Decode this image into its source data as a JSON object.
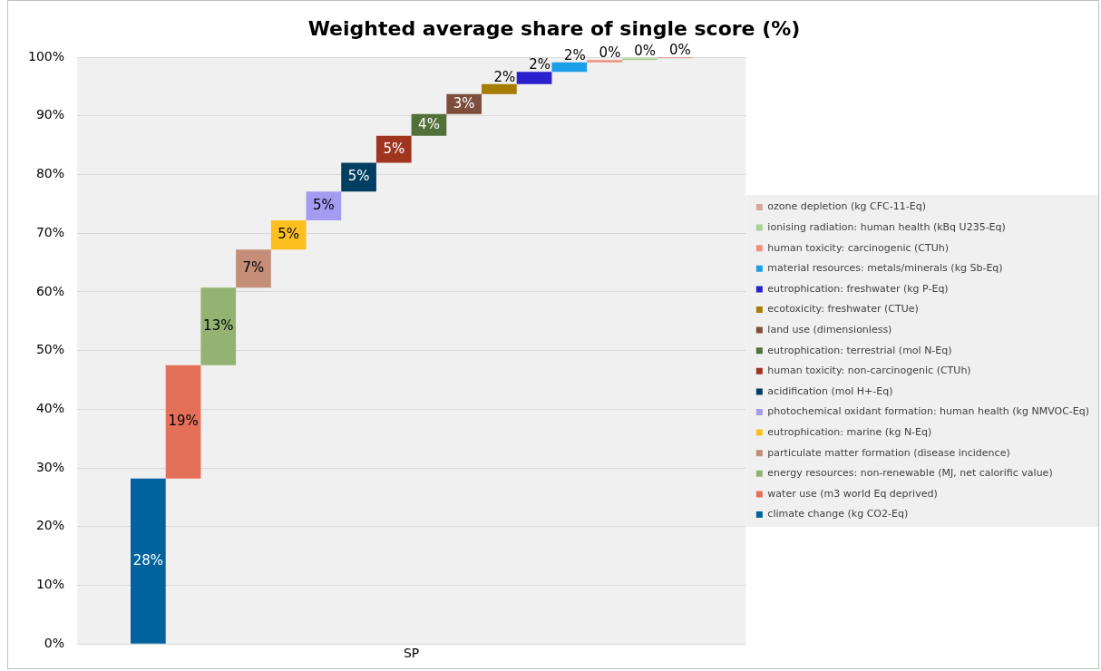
{
  "chart_data": {
    "type": "bar",
    "title": "Weighted average share of single score (%)",
    "categories": [
      "SP"
    ],
    "ylim": [
      0,
      100
    ],
    "yticks": [
      {
        "value": 0,
        "label": "0%"
      },
      {
        "value": 10,
        "label": "10%"
      },
      {
        "value": 20,
        "label": "20%"
      },
      {
        "value": 30,
        "label": "30%"
      },
      {
        "value": 40,
        "label": "40%"
      },
      {
        "value": 50,
        "label": "50%"
      },
      {
        "value": 60,
        "label": "60%"
      },
      {
        "value": 70,
        "label": "70%"
      },
      {
        "value": 80,
        "label": "80%"
      },
      {
        "value": 90,
        "label": "90%"
      },
      {
        "value": 100,
        "label": "100%"
      }
    ],
    "grid": "y",
    "legend": "right",
    "series": [
      {
        "name": "climate change (kg CO2-Eq)",
        "color": "#00639e",
        "base": [
          0
        ],
        "values": [
          28.2
        ],
        "value_labels": [
          "28%"
        ]
      },
      {
        "name": "water use (m3 world Eq deprived)",
        "color": "#e5705a",
        "base": [
          28.2
        ],
        "values": [
          19.3
        ],
        "value_labels": [
          "19%"
        ]
      },
      {
        "name": "energy resources: non-renewable (MJ, net calorific value)",
        "color": "#94b373",
        "base": [
          47.5
        ],
        "values": [
          13.2
        ],
        "value_labels": [
          "13%"
        ]
      },
      {
        "name": "particulate matter formation (disease incidence)",
        "color": "#c48e78",
        "base": [
          60.7
        ],
        "values": [
          6.5
        ],
        "value_labels": [
          "7%"
        ]
      },
      {
        "name": "eutrophication: marine (kg N-Eq)",
        "color": "#fbc020",
        "base": [
          67.2
        ],
        "values": [
          5.0
        ],
        "value_labels": [
          "5%"
        ]
      },
      {
        "name": "photochemical oxidant formation: human health (kg NMVOC-Eq)",
        "color": "#a39cf0",
        "base": [
          72.2
        ],
        "values": [
          4.9
        ],
        "value_labels": [
          "5%"
        ]
      },
      {
        "name": "acidification (mol H+-Eq)",
        "color": "#003f62",
        "base": [
          77.1
        ],
        "values": [
          4.9
        ],
        "value_labels": [
          "5%"
        ]
      },
      {
        "name": "human toxicity: non-carcinogenic (CTUh)",
        "color": "#a0351f",
        "base": [
          82.0
        ],
        "values": [
          4.6
        ],
        "value_labels": [
          "5%"
        ]
      },
      {
        "name": "eutrophication: terrestrial (mol N-Eq)",
        "color": "#52703a",
        "base": [
          86.6
        ],
        "values": [
          3.7
        ],
        "value_labels": [
          "4%"
        ]
      },
      {
        "name": "land use (dimensionless)",
        "color": "#7d4e3c",
        "base": [
          90.3
        ],
        "values": [
          3.4
        ],
        "value_labels": [
          "3%"
        ]
      },
      {
        "name": "ecotoxicity: freshwater (CTUe)",
        "color": "#a67d00",
        "base": [
          93.7
        ],
        "values": [
          1.7
        ],
        "value_labels": [
          "2%"
        ]
      },
      {
        "name": "eutrophication: freshwater (kg P-Eq)",
        "color": "#2c1fd0",
        "base": [
          95.4
        ],
        "values": [
          2.1
        ],
        "value_labels": [
          "2%"
        ]
      },
      {
        "name": "material resources: metals/minerals (kg Sb-Eq)",
        "color": "#1a9fe8",
        "base": [
          97.5
        ],
        "values": [
          1.6
        ],
        "value_labels": [
          "2%"
        ]
      },
      {
        "name": "human toxicity: carcinogenic (CTUh)",
        "color": "#f0907a",
        "base": [
          99.1
        ],
        "values": [
          0.4
        ],
        "value_labels": [
          "0%"
        ]
      },
      {
        "name": "ionising radiation: human health (kBq U235-Eq)",
        "color": "#a9cf94",
        "base": [
          99.5
        ],
        "values": [
          0.3
        ],
        "value_labels": [
          "0%"
        ]
      },
      {
        "name": "ozone depletion (kg CFC-11-Eq)",
        "color": "#d7a89a",
        "base": [
          99.8
        ],
        "values": [
          0.2
        ],
        "value_labels": [
          "0%"
        ]
      }
    ]
  }
}
